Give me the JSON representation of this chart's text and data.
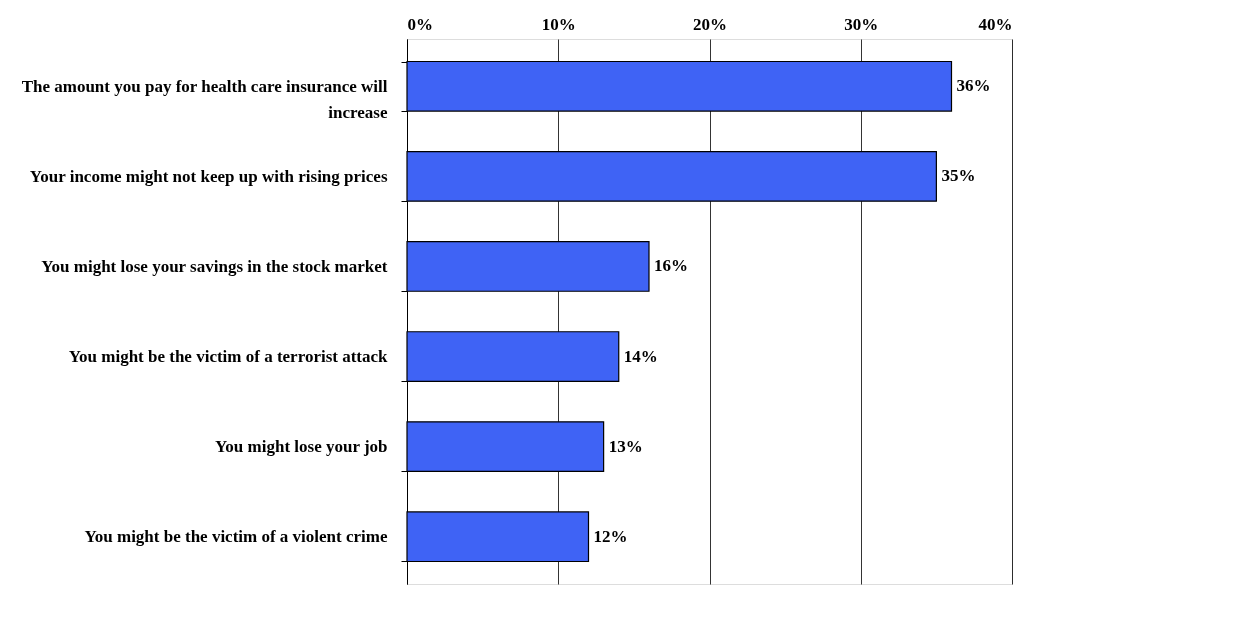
{
  "chart_data": {
    "type": "bar",
    "orientation": "horizontal",
    "categories": [
      "The amount you pay for health care insurance will increase",
      "Your income might not keep up with rising prices",
      "You might lose your savings in the stock market",
      "You might be the victim of a terrorist attack",
      "You might lose your job",
      "You might be the victim of a violent crime"
    ],
    "values": [
      36,
      35,
      16,
      14,
      13,
      12
    ],
    "value_labels": [
      "36%",
      "35%",
      "16%",
      "14%",
      "13%",
      "12%"
    ],
    "color": "#3f63f5",
    "xlim": [
      0,
      40
    ],
    "xticks": [
      {
        "value": 0,
        "label": "0%"
      },
      {
        "value": 10,
        "label": "10%"
      },
      {
        "value": 20,
        "label": "20%"
      },
      {
        "value": 30,
        "label": "30%"
      },
      {
        "value": 40,
        "label": "40%"
      }
    ],
    "grid": "x"
  }
}
